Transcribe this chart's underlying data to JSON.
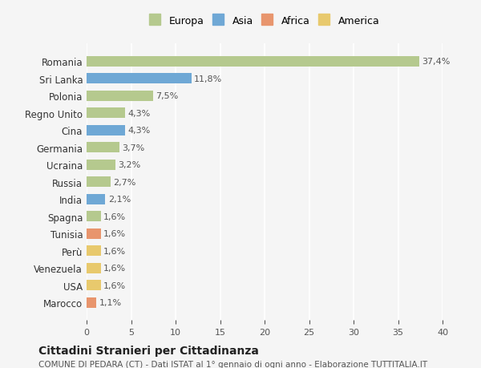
{
  "countries": [
    "Romania",
    "Sri Lanka",
    "Polonia",
    "Regno Unito",
    "Cina",
    "Germania",
    "Ucraina",
    "Russia",
    "India",
    "Spagna",
    "Tunisia",
    "Perù",
    "Venezuela",
    "USA",
    "Marocco"
  ],
  "values": [
    37.4,
    11.8,
    7.5,
    4.3,
    4.3,
    3.7,
    3.2,
    2.7,
    2.1,
    1.6,
    1.6,
    1.6,
    1.6,
    1.6,
    1.1
  ],
  "labels": [
    "37,4%",
    "11,8%",
    "7,5%",
    "4,3%",
    "4,3%",
    "3,7%",
    "3,2%",
    "2,7%",
    "2,1%",
    "1,6%",
    "1,6%",
    "1,6%",
    "1,6%",
    "1,6%",
    "1,1%"
  ],
  "continents": [
    "Europa",
    "Asia",
    "Europa",
    "Europa",
    "Asia",
    "Europa",
    "Europa",
    "Europa",
    "Asia",
    "Europa",
    "Africa",
    "America",
    "America",
    "America",
    "Africa"
  ],
  "colors": {
    "Europa": "#b5c98e",
    "Asia": "#6fa8d5",
    "Africa": "#e8956d",
    "America": "#e8c96d"
  },
  "legend_order": [
    "Europa",
    "Asia",
    "Africa",
    "America"
  ],
  "background_color": "#f5f5f5",
  "title": "Cittadini Stranieri per Cittadinanza",
  "subtitle": "COMUNE DI PEDARA (CT) - Dati ISTAT al 1° gennaio di ogni anno - Elaborazione TUTTITALIA.IT",
  "xlim": [
    0,
    40
  ],
  "xticks": [
    0,
    5,
    10,
    15,
    20,
    25,
    30,
    35,
    40
  ]
}
